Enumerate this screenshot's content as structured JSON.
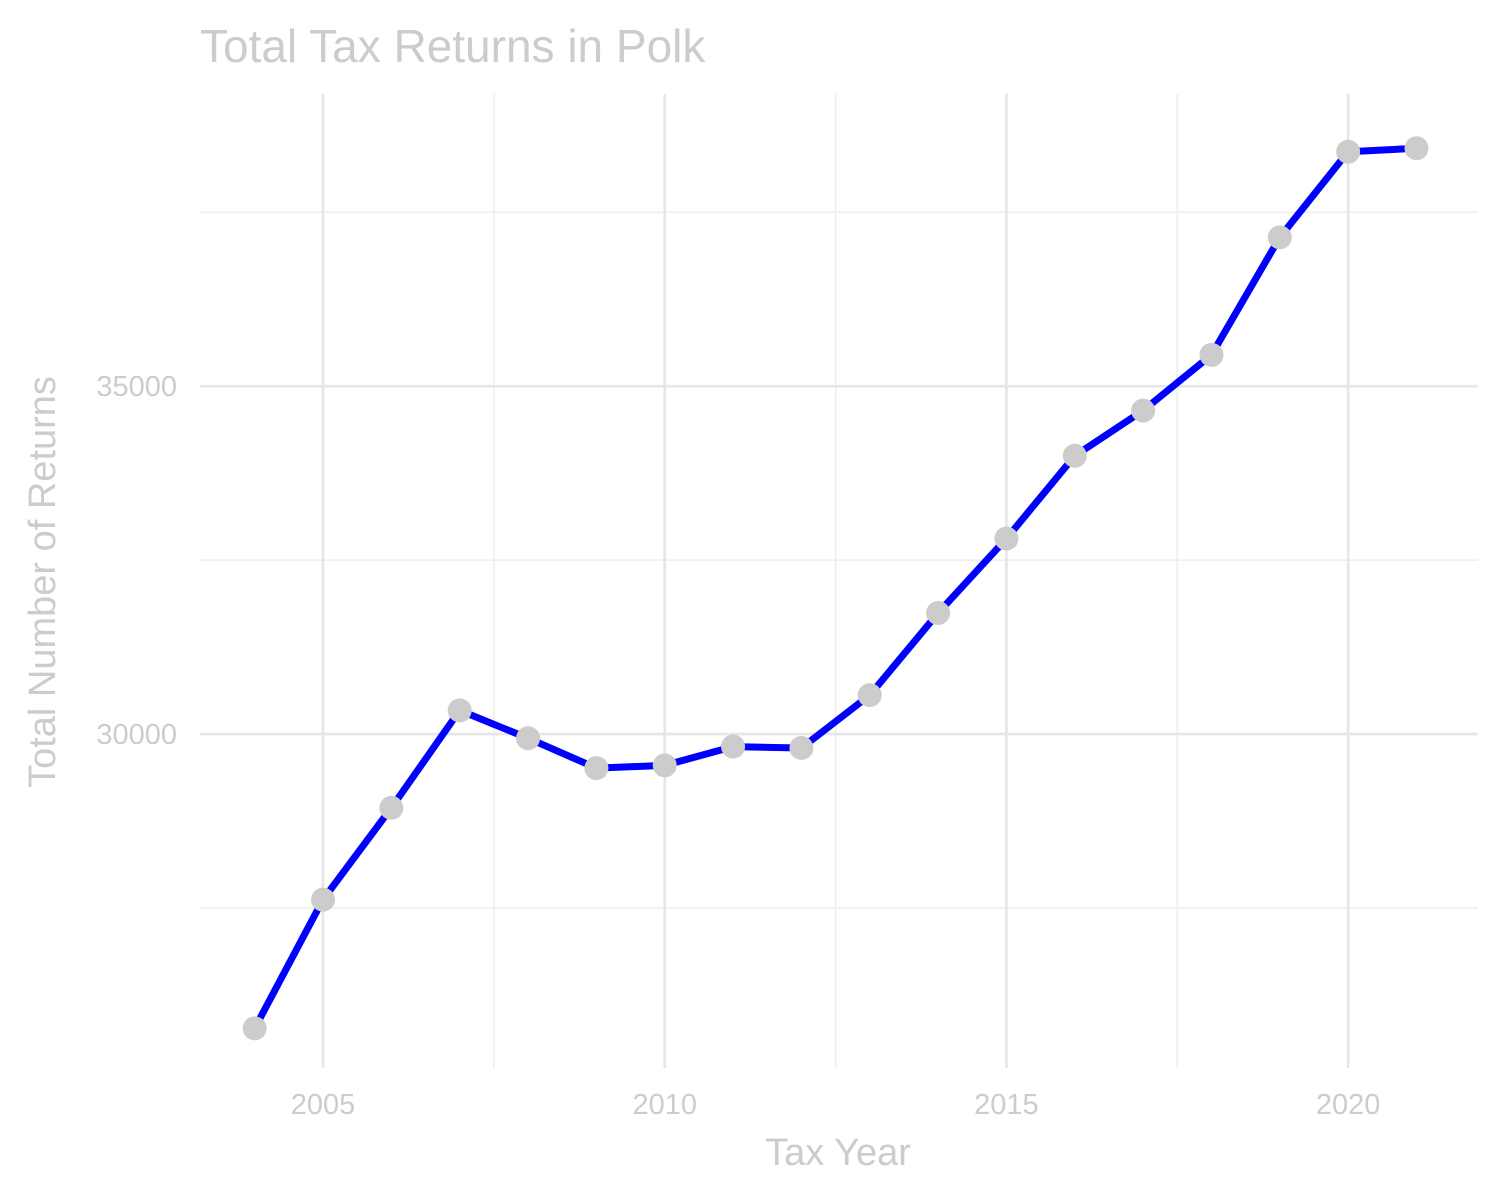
{
  "chart_data": {
    "type": "line",
    "title": "Total Tax Returns in Polk",
    "xlabel": "Tax Year",
    "ylabel": "Total Number of Returns",
    "x": [
      2004,
      2005,
      2006,
      2007,
      2008,
      2009,
      2010,
      2011,
      2012,
      2013,
      2014,
      2015,
      2016,
      2017,
      2018,
      2019,
      2020,
      2021
    ],
    "series": [
      {
        "values": [
          25770,
          27620,
          28940,
          30340,
          29940,
          29510,
          29550,
          29820,
          29800,
          30560,
          31740,
          32810,
          34000,
          34650,
          35450,
          37140,
          38370,
          38420
        ]
      }
    ],
    "xlim": [
      2003.2,
      2021.9
    ],
    "ylim": [
      25200,
      39200
    ],
    "x_ticks": [
      2005,
      2010,
      2015,
      2020
    ],
    "x_minor_ticks": [
      2007.5,
      2012.5,
      2017.5
    ],
    "y_ticks": [
      30000,
      35000
    ],
    "y_minor_ticks": [
      27500,
      32500,
      37500
    ],
    "grid": true,
    "legend": "none",
    "colors": {
      "line": "#0000ff",
      "points": "#cccccc",
      "text": "#cccccc",
      "grid": "#e6e6e6"
    }
  }
}
